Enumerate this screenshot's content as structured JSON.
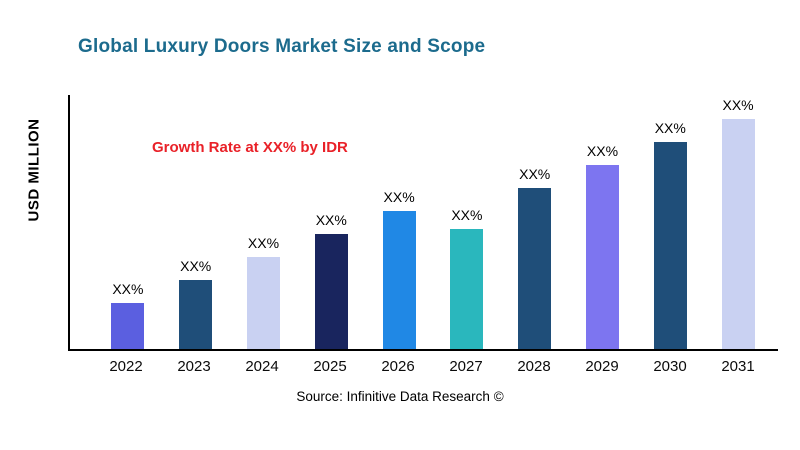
{
  "title": "Global Luxury Doors Market Size and Scope",
  "annotation": "Growth Rate at XX% by IDR",
  "source": "Source: Infinitive Data Research ©",
  "style": {
    "title_color": "#1c6b8d",
    "annotation_color": "#e92128",
    "axis_color": "#000000"
  },
  "chart_data": {
    "type": "bar",
    "title": "Global Luxury Doors Market Size and Scope",
    "xlabel": "",
    "ylabel": "USD MILLION",
    "categories": [
      "2022",
      "2023",
      "2024",
      "2025",
      "2026",
      "2027",
      "2028",
      "2029",
      "2030",
      "2031"
    ],
    "values": [
      20,
      30,
      40,
      50,
      60,
      52,
      70,
      80,
      90,
      100
    ],
    "bar_labels": [
      "XX%",
      "XX%",
      "XX%",
      "XX%",
      "XX%",
      "XX%",
      "XX%",
      "XX%",
      "XX%",
      "XX%"
    ],
    "colors": [
      "#5b5fe0",
      "#1f4e79",
      "#c9d1f2",
      "#19255e",
      "#2088e5",
      "#2ab7bd",
      "#1f4e79",
      "#7d75f0",
      "#1f4e79",
      "#c9d1f2"
    ],
    "ylim": [
      0,
      100
    ],
    "yticks": [],
    "grid": false,
    "legend": "none",
    "annotation": "Growth Rate at XX% by IDR"
  }
}
